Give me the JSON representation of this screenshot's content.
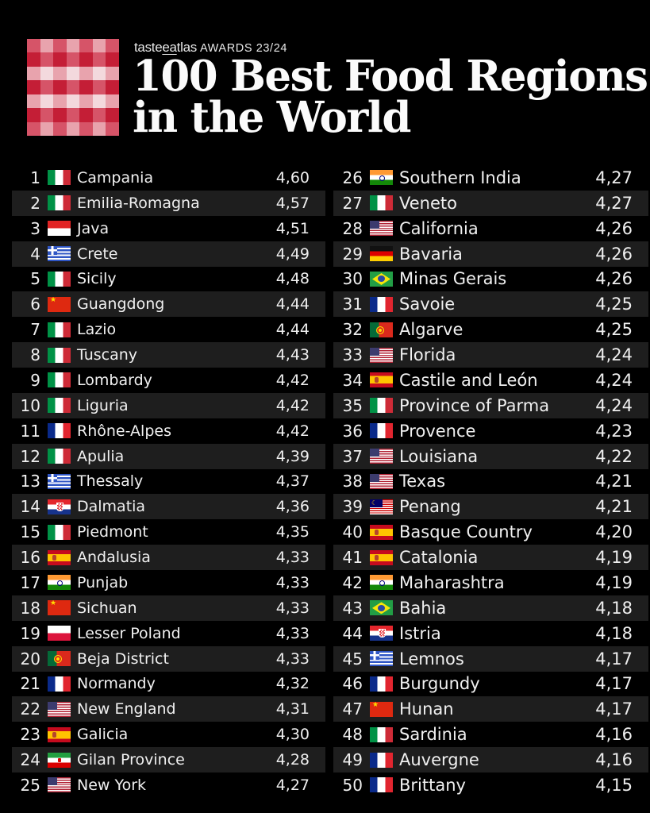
{
  "header": {
    "brand_prefix": "taste",
    "brand_underlined": "ea",
    "brand_suffix": "tlas",
    "awards_label": "AWARDS 23/24",
    "title_line1": "100 Best Food Regions",
    "title_line2": "in the World"
  },
  "logo": {
    "colors": {
      "dark": "#c41e36",
      "mid": "#d65468",
      "light": "#e8a3ad",
      "pale": "#f3d9dd"
    }
  },
  "rows_left": [
    {
      "rank": "1",
      "flag": "it",
      "name": "Campania",
      "score": "4,60"
    },
    {
      "rank": "2",
      "flag": "it",
      "name": "Emilia-Romagna",
      "score": "4,57"
    },
    {
      "rank": "3",
      "flag": "id",
      "name": "Java",
      "score": "4,51"
    },
    {
      "rank": "4",
      "flag": "gr",
      "name": "Crete",
      "score": "4,49"
    },
    {
      "rank": "5",
      "flag": "it",
      "name": "Sicily",
      "score": "4,48"
    },
    {
      "rank": "6",
      "flag": "cn",
      "name": "Guangdong",
      "score": "4,44"
    },
    {
      "rank": "7",
      "flag": "it",
      "name": "Lazio",
      "score": "4,44"
    },
    {
      "rank": "8",
      "flag": "it",
      "name": "Tuscany",
      "score": "4,43"
    },
    {
      "rank": "9",
      "flag": "it",
      "name": "Lombardy",
      "score": "4,42"
    },
    {
      "rank": "10",
      "flag": "it",
      "name": "Liguria",
      "score": "4,42"
    },
    {
      "rank": "11",
      "flag": "fr",
      "name": "Rhône-Alpes",
      "score": "4,42"
    },
    {
      "rank": "12",
      "flag": "it",
      "name": "Apulia",
      "score": "4,39"
    },
    {
      "rank": "13",
      "flag": "gr",
      "name": "Thessaly",
      "score": "4,37"
    },
    {
      "rank": "14",
      "flag": "hr",
      "name": "Dalmatia",
      "score": "4,36"
    },
    {
      "rank": "15",
      "flag": "it",
      "name": "Piedmont",
      "score": "4,35"
    },
    {
      "rank": "16",
      "flag": "es",
      "name": "Andalusia",
      "score": "4,33"
    },
    {
      "rank": "17",
      "flag": "in",
      "name": "Punjab",
      "score": "4,33"
    },
    {
      "rank": "18",
      "flag": "cn",
      "name": "Sichuan",
      "score": "4,33"
    },
    {
      "rank": "19",
      "flag": "pl",
      "name": "Lesser Poland",
      "score": "4,33"
    },
    {
      "rank": "20",
      "flag": "pt",
      "name": "Beja District",
      "score": "4,33"
    },
    {
      "rank": "21",
      "flag": "fr",
      "name": "Normandy",
      "score": "4,32"
    },
    {
      "rank": "22",
      "flag": "us",
      "name": "New England",
      "score": "4,31"
    },
    {
      "rank": "23",
      "flag": "es",
      "name": "Galicia",
      "score": "4,30"
    },
    {
      "rank": "24",
      "flag": "ir",
      "name": "Gilan Province",
      "score": "4,28"
    },
    {
      "rank": "25",
      "flag": "us",
      "name": "New York",
      "score": "4,27"
    }
  ],
  "rows_right": [
    {
      "rank": "26",
      "flag": "in",
      "name": "Southern India",
      "score": "4,27"
    },
    {
      "rank": "27",
      "flag": "it",
      "name": "Veneto",
      "score": "4,27"
    },
    {
      "rank": "28",
      "flag": "us",
      "name": "California",
      "score": "4,26"
    },
    {
      "rank": "29",
      "flag": "de",
      "name": "Bavaria",
      "score": "4,26"
    },
    {
      "rank": "30",
      "flag": "br",
      "name": "Minas Gerais",
      "score": "4,26"
    },
    {
      "rank": "31",
      "flag": "fr",
      "name": "Savoie",
      "score": "4,25"
    },
    {
      "rank": "32",
      "flag": "pt",
      "name": "Algarve",
      "score": "4,25"
    },
    {
      "rank": "33",
      "flag": "us",
      "name": "Florida",
      "score": "4,24"
    },
    {
      "rank": "34",
      "flag": "es",
      "name": "Castile and León",
      "score": "4,24"
    },
    {
      "rank": "35",
      "flag": "it",
      "name": "Province of Parma",
      "score": "4,24"
    },
    {
      "rank": "36",
      "flag": "fr",
      "name": "Provence",
      "score": "4,23"
    },
    {
      "rank": "37",
      "flag": "us",
      "name": "Louisiana",
      "score": "4,22"
    },
    {
      "rank": "38",
      "flag": "us",
      "name": "Texas",
      "score": "4,21"
    },
    {
      "rank": "39",
      "flag": "my",
      "name": "Penang",
      "score": "4,21"
    },
    {
      "rank": "40",
      "flag": "es",
      "name": "Basque Country",
      "score": "4,20"
    },
    {
      "rank": "41",
      "flag": "es",
      "name": "Catalonia",
      "score": "4,19"
    },
    {
      "rank": "42",
      "flag": "in",
      "name": "Maharashtra",
      "score": "4,19"
    },
    {
      "rank": "43",
      "flag": "br",
      "name": "Bahia",
      "score": "4,18"
    },
    {
      "rank": "44",
      "flag": "hr",
      "name": "Istria",
      "score": "4,18"
    },
    {
      "rank": "45",
      "flag": "gr",
      "name": "Lemnos",
      "score": "4,17"
    },
    {
      "rank": "46",
      "flag": "fr",
      "name": "Burgundy",
      "score": "4,17"
    },
    {
      "rank": "47",
      "flag": "cn",
      "name": "Hunan",
      "score": "4,17"
    },
    {
      "rank": "48",
      "flag": "it",
      "name": "Sardinia",
      "score": "4,16"
    },
    {
      "rank": "49",
      "flag": "fr",
      "name": "Auvergne",
      "score": "4,16"
    },
    {
      "rank": "50",
      "flag": "fr",
      "name": "Brittany",
      "score": "4,15"
    }
  ]
}
